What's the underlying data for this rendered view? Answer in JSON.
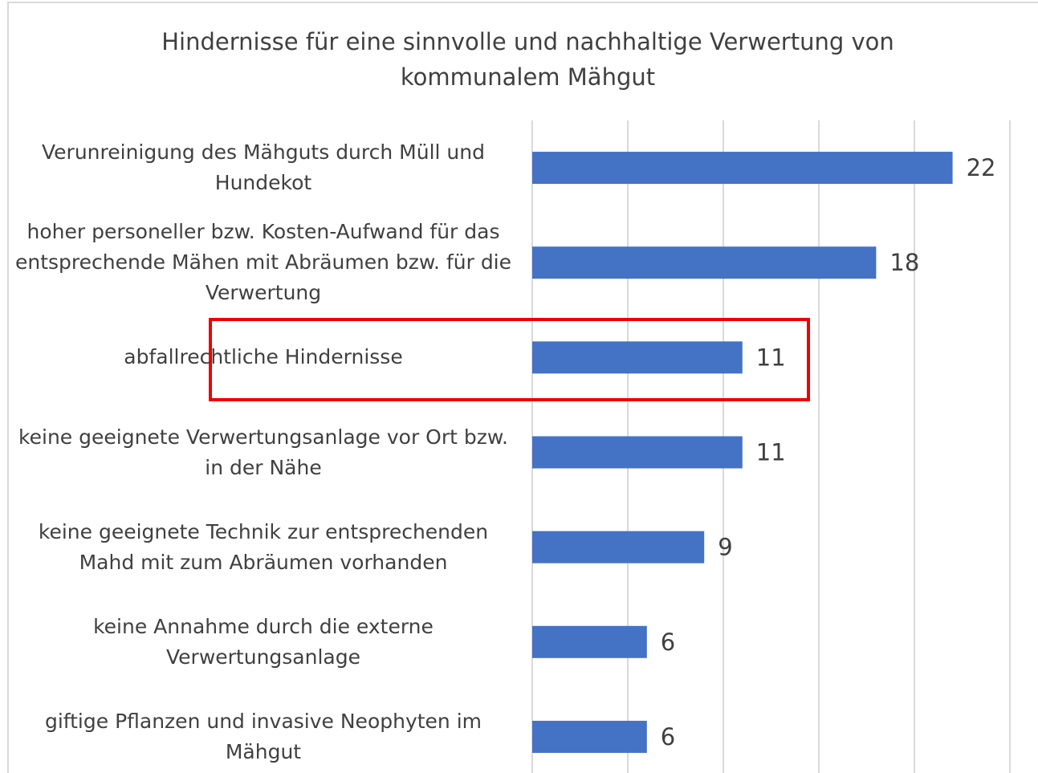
{
  "chart_data": {
    "type": "barh",
    "title": "Hindernisse für eine sinnvolle und nachhaltige Verwertung von kommunalem Mähgut",
    "categories": [
      "Verunreinigung des Mähguts durch Müll und Hundekot",
      "hoher personeller bzw. Kosten-Aufwand für das entsprechende Mähen mit Abräumen bzw. für die Verwertung",
      "abfallrechtliche Hindernisse",
      "keine geeignete Verwertungsanlage vor Ort bzw. in der Nähe",
      "keine geeignete Technik zur entsprechenden Mahd mit zum Abräumen vorhanden",
      "keine Annahme durch die externe Verwertungsanlage",
      "giftige Pflanzen und invasive Neophyten im Mähgut"
    ],
    "values": [
      22,
      18,
      11,
      11,
      9,
      6,
      6
    ],
    "color": "#4472c4",
    "xlim": [
      0,
      25
    ],
    "xticks": [
      0,
      5,
      10,
      15,
      20,
      25
    ],
    "grid": true
  }
}
